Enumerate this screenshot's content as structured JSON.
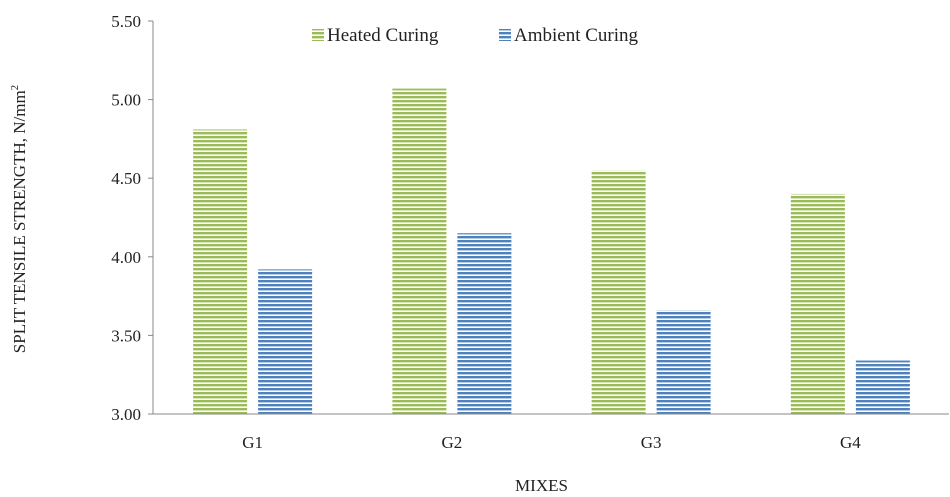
{
  "chart_data": {
    "type": "bar",
    "title": "",
    "xlabel": "MIXES",
    "ylabel": "SPLIT TENSILE STRENGTH, N/mm",
    "ylabel_superscript": "2",
    "categories": [
      "G1",
      "G2",
      "G3",
      "G4"
    ],
    "series": [
      {
        "name": "Heated Curing",
        "values": [
          4.81,
          5.07,
          4.55,
          4.4
        ],
        "color": "#9bbb59",
        "stripe": "#ffffff"
      },
      {
        "name": "Ambient Curing",
        "values": [
          3.92,
          4.15,
          3.66,
          3.34
        ],
        "color": "#4f81bd",
        "stripe": "#ffffff"
      }
    ],
    "ylim": [
      3.0,
      5.5
    ],
    "yticks": [
      "3.00",
      "3.50",
      "4.00",
      "4.50",
      "5.00",
      "5.50"
    ],
    "grid": false,
    "legend": "top-center",
    "axis_color": "#888888"
  }
}
